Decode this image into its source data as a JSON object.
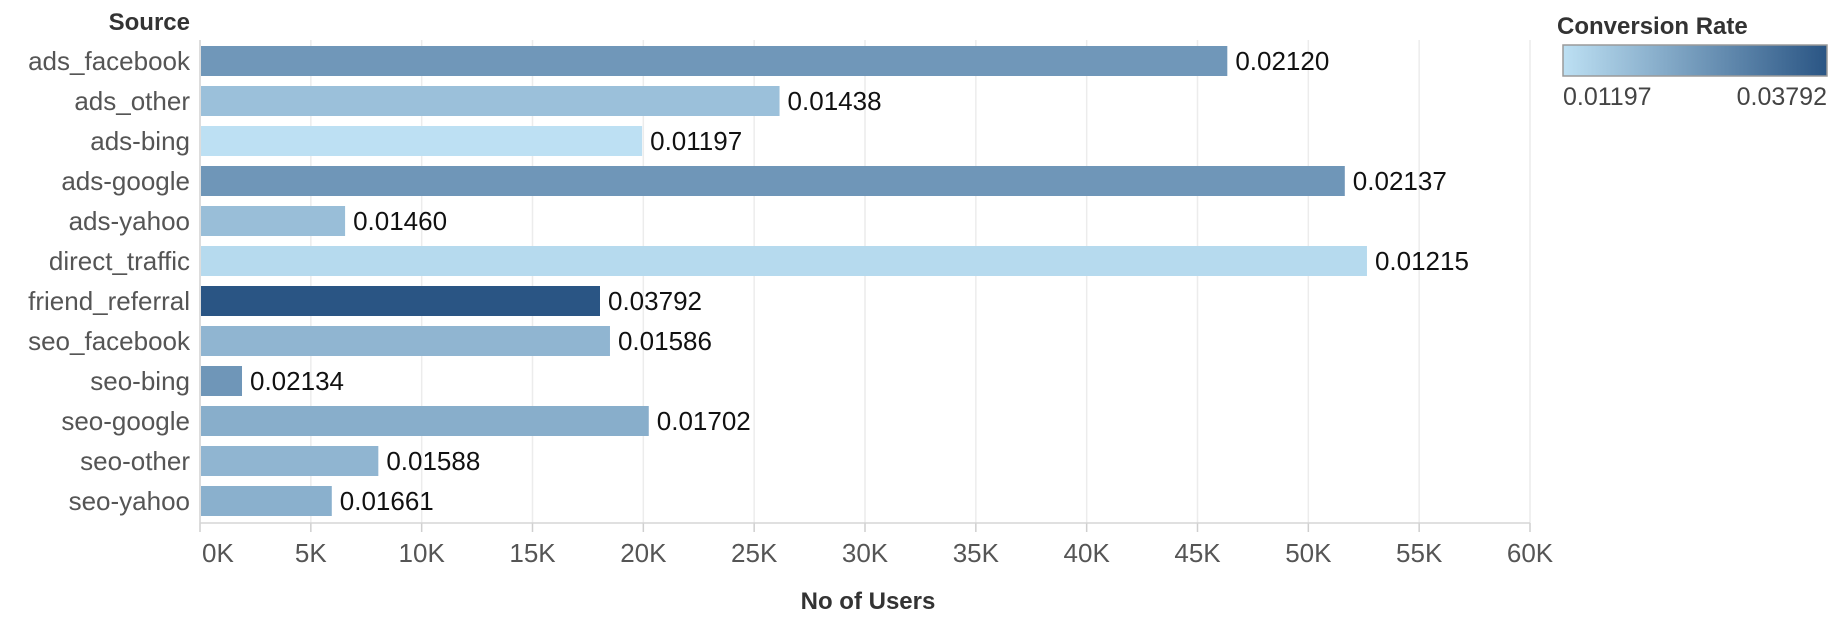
{
  "chart_data": {
    "type": "bar",
    "orientation": "horizontal",
    "row_header": "Source",
    "xlabel": "No of Users",
    "xlim": [
      0,
      60000
    ],
    "x_ticks": [
      0,
      5000,
      10000,
      15000,
      20000,
      25000,
      30000,
      35000,
      40000,
      45000,
      50000,
      55000,
      60000
    ],
    "x_tick_labels": [
      "0K",
      "5K",
      "10K",
      "15K",
      "20K",
      "25K",
      "30K",
      "35K",
      "40K",
      "45K",
      "50K",
      "55K",
      "60K"
    ],
    "grid": true,
    "categories": [
      "ads_facebook",
      "ads_other",
      "ads-bing",
      "ads-google",
      "ads-yahoo",
      "direct_traffic",
      "friend_referral",
      "seo_facebook",
      "seo-bing",
      "seo-google",
      "seo-other",
      "seo-yahoo"
    ],
    "values": [
      46300,
      26100,
      19900,
      51600,
      6500,
      52600,
      18000,
      18450,
      1850,
      20200,
      8000,
      5900
    ],
    "color_values": [
      0.0212,
      0.01438,
      0.01197,
      0.02137,
      0.0146,
      0.01215,
      0.03792,
      0.01586,
      0.02134,
      0.01702,
      0.01588,
      0.01661
    ],
    "data_labels": [
      "0.02120",
      "0.01438",
      "0.01197",
      "0.02137",
      "0.01460",
      "0.01215",
      "0.03792",
      "0.01586",
      "0.02134",
      "0.01702",
      "0.01588",
      "0.01661"
    ],
    "legend": {
      "title": "Conversion Rate",
      "min": 0.01197,
      "max": 0.03792,
      "min_label": "0.01197",
      "max_label": "0.03792",
      "placement": "top-right",
      "color_low": "#bde0f3",
      "color_high": "#2a5584"
    }
  }
}
